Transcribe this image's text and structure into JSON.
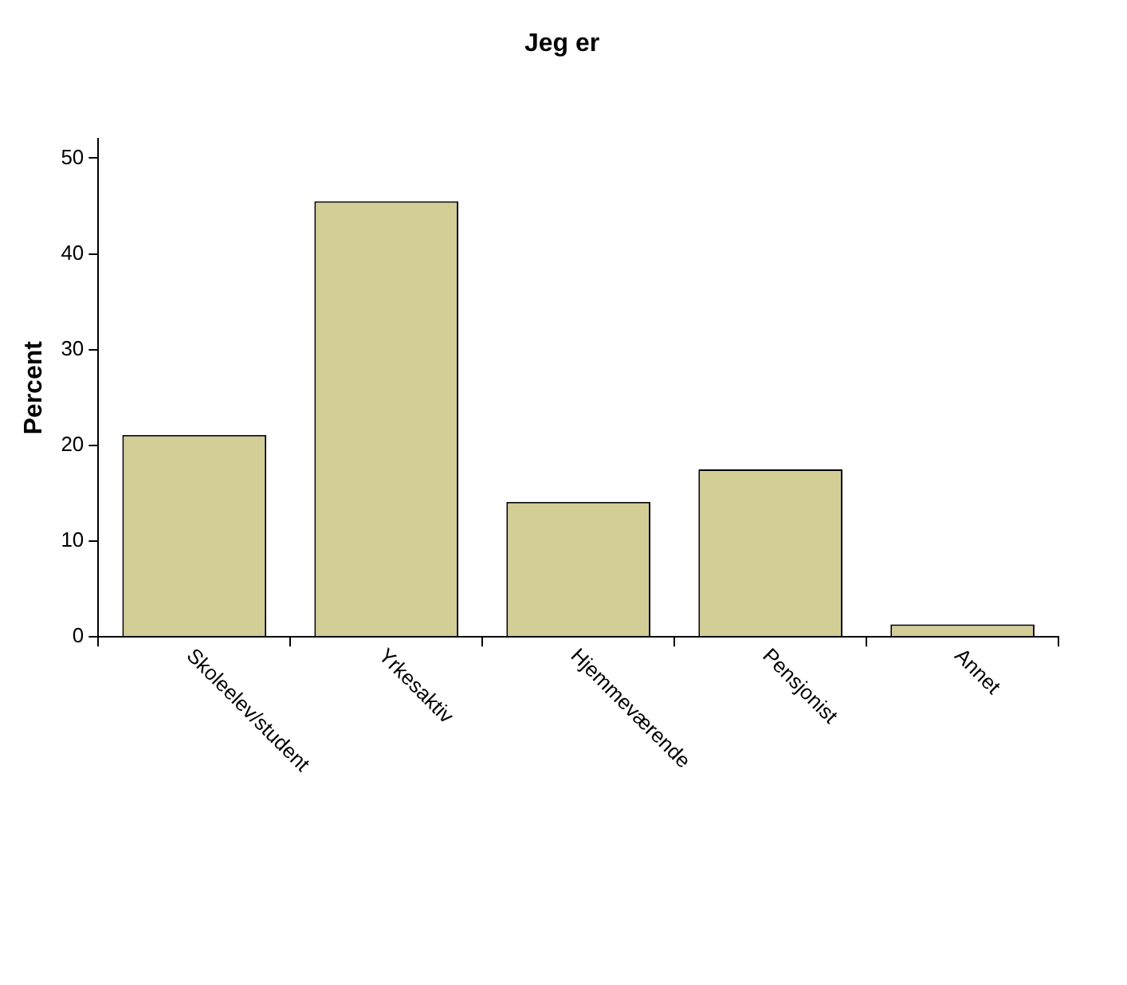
{
  "chart_data": {
    "type": "bar",
    "title": "Jeg er",
    "ylabel": "Percent",
    "categories": [
      "Skoleelev/student",
      "Yrkesaktiv",
      "Hjemmeværende",
      "Pensjonist",
      "Annet"
    ],
    "values": [
      21.1,
      45.5,
      14.1,
      17.5,
      1.3
    ],
    "color": "#d3cd96",
    "ylim": [
      0,
      52
    ],
    "yticks": [
      0,
      10,
      20,
      30,
      40,
      50
    ],
    "grid": false,
    "legend": false
  }
}
